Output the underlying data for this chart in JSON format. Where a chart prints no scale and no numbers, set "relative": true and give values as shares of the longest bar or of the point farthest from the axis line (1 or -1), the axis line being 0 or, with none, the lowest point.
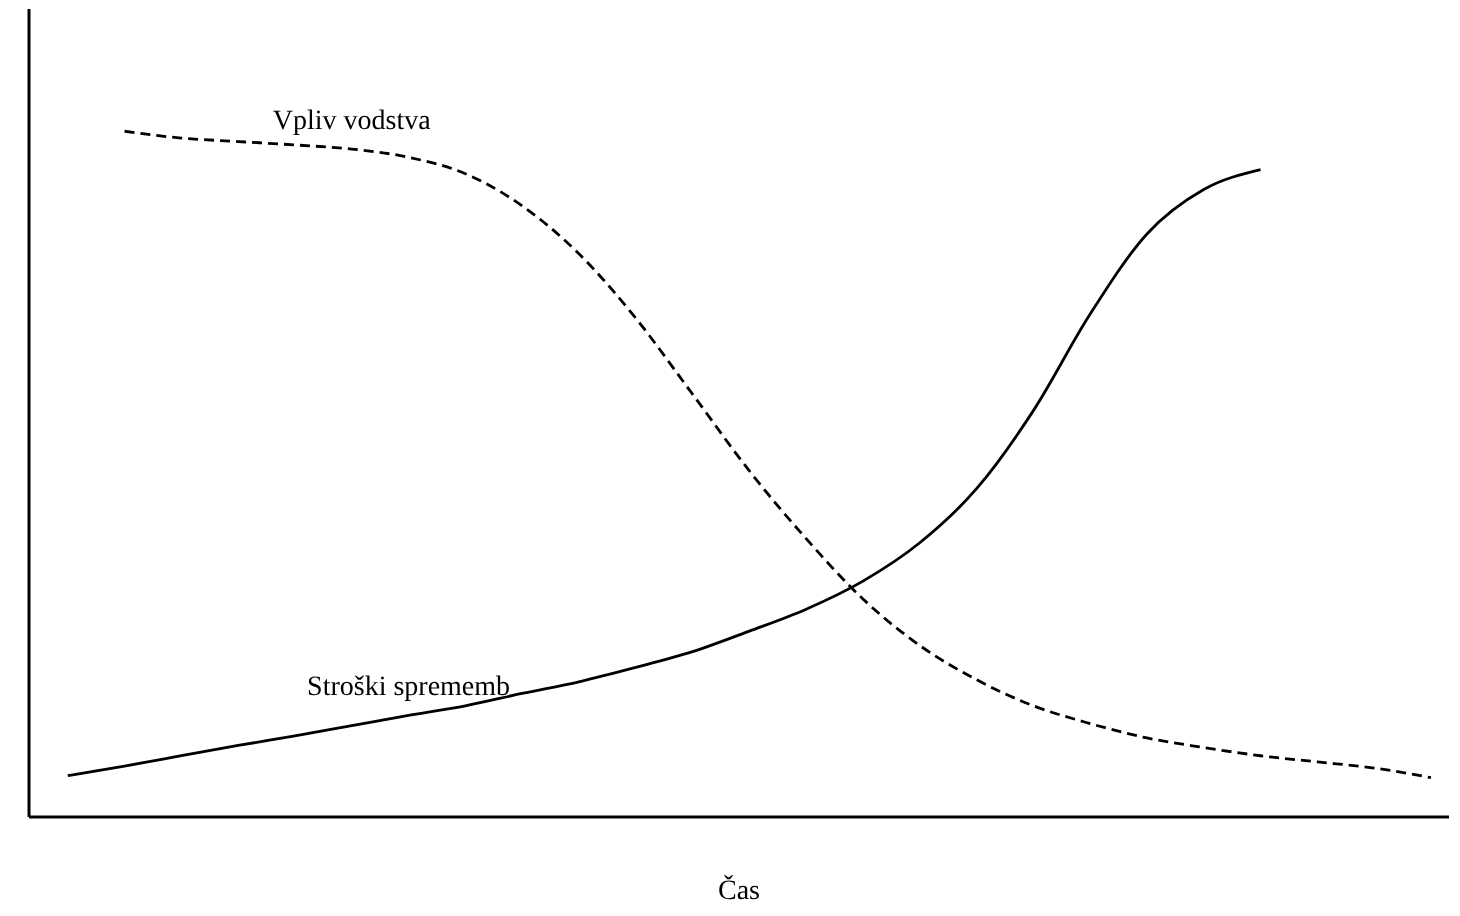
{
  "chart_data": {
    "type": "line",
    "xlabel": "Čas",
    "relative": true,
    "tick_labels": false,
    "grid": false,
    "legend": false,
    "marker": "none",
    "categories": [
      null,
      null,
      null,
      null,
      null,
      null,
      null,
      null,
      null,
      null,
      null,
      null,
      null,
      null,
      null,
      null,
      null,
      null,
      null,
      null,
      null,
      null,
      null,
      null,
      null
    ],
    "series": [
      {
        "name": "Vpliv vodstva",
        "color": "#000000",
        "line_style": "dashed",
        "values": [
          null,
          1.0,
          0.99,
          0.985,
          0.98,
          0.974,
          0.962,
          0.938,
          0.891,
          0.821,
          0.727,
          0.616,
          0.504,
          0.405,
          0.317,
          0.249,
          0.199,
          0.161,
          0.135,
          0.114,
          0.1,
          0.088,
          0.079,
          0.07,
          0.056
        ]
      },
      {
        "name": "Stroški sprememb",
        "color": "#000000",
        "line_style": "solid",
        "values": [
          0.059,
          0.073,
          0.088,
          0.103,
          0.117,
          0.132,
          0.147,
          0.161,
          0.179,
          0.196,
          0.217,
          0.24,
          0.27,
          0.302,
          0.343,
          0.399,
          0.478,
          0.592,
          0.733,
          0.85,
          0.915,
          0.944,
          null,
          null,
          null
        ]
      }
    ]
  }
}
